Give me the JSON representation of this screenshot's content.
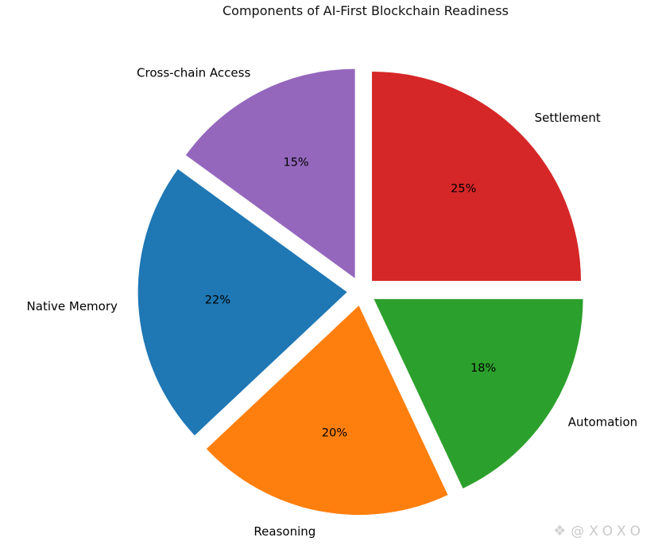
{
  "title": "Components of AI-First Blockchain Readiness",
  "watermark": {
    "icon": "diamond-logo",
    "text": "@XOXO"
  },
  "chart_data": {
    "type": "pie",
    "title": "Components of AI-First Blockchain Readiness",
    "labels": [
      "Settlement",
      "Cross-chain Access",
      "Native Memory",
      "Reasoning",
      "Automation"
    ],
    "values": [
      25,
      15,
      22,
      20,
      18
    ],
    "pct_labels": [
      "25%",
      "15%",
      "22%",
      "20%",
      "18%"
    ],
    "colors": [
      "#d62728",
      "#9467bd",
      "#1f77b4",
      "#ff7f0e",
      "#2ca02c"
    ],
    "start_angle": 0,
    "direction": "counterclockwise",
    "explode": 0.07,
    "legend": "none",
    "background": "#ffffff"
  }
}
